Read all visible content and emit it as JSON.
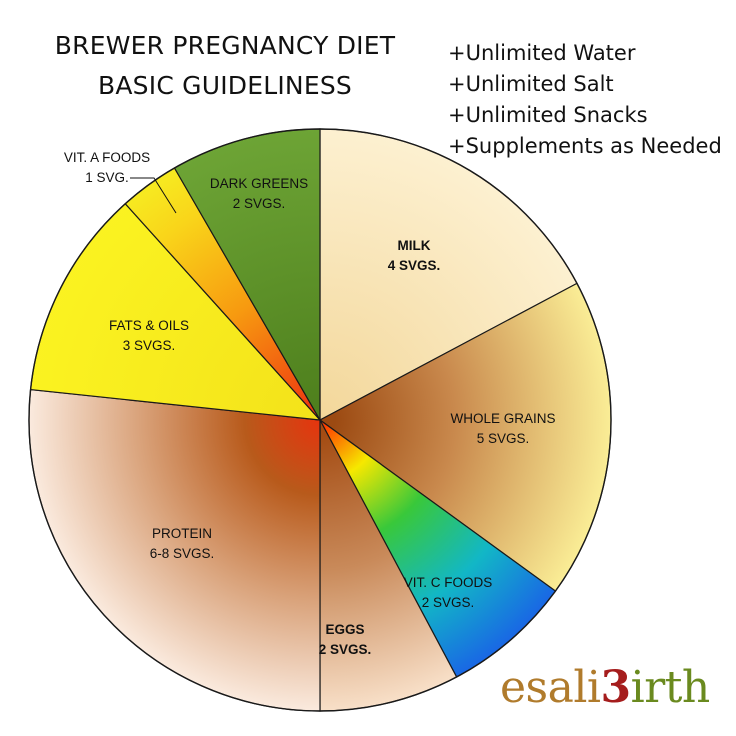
{
  "chart_data": {
    "type": "pie",
    "title": [
      "BREWER PREGNANCY DIET",
      "BASIC GUIDELINESS"
    ],
    "slices": [
      {
        "name": "MILK",
        "servings": "4 SVGS.",
        "value": 4,
        "bold": true,
        "color": "#fbe9c0"
      },
      {
        "name": "WHOLE GRAINS",
        "servings": "5 SVGS.",
        "value": 5,
        "bold": false,
        "color": "#b86a2a"
      },
      {
        "name": "VIT. C FOODS",
        "servings": "2 SVGS.",
        "value": 2,
        "bold": false,
        "color": "#3fbf2f"
      },
      {
        "name": "EGGS",
        "servings": "2 SVGS.",
        "value": 2,
        "bold": true,
        "color": "#c98a5a"
      },
      {
        "name": "PROTEIN",
        "servings": "6-8 SVGS.",
        "value": 7,
        "bold": false,
        "color": "#c9702f"
      },
      {
        "name": "FATS & OILS",
        "servings": "3 SVGS.",
        "value": 3,
        "bold": false,
        "color": "#f6ee1c"
      },
      {
        "name": "VIT. A FOODS",
        "servings": "1 SVG.",
        "value": 1,
        "bold": false,
        "color": "#f4c21a"
      },
      {
        "name": "DARK GREENS",
        "servings": "2 SVGS.",
        "value": 2,
        "bold": false,
        "color": "#5f9a2a"
      }
    ]
  },
  "notes": [
    "+Unlimited Water",
    "+Unlimited Salt",
    "+Unlimited Snacks",
    "+Supplements as Needed"
  ],
  "brand": {
    "part1": "esali",
    "part2": "irth",
    "mark": "3"
  }
}
